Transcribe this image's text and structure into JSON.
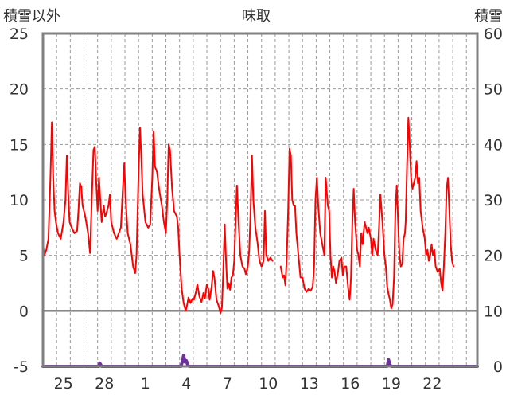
{
  "chart_data": {
    "type": "line",
    "title": "味取",
    "ylabel_left": "積雪以外",
    "ylabel_right": "積雪",
    "y_left_range": [
      -5,
      25
    ],
    "y_left_ticks": [
      -5,
      0,
      5,
      10,
      15,
      20,
      25
    ],
    "y_right_range": [
      0,
      60
    ],
    "y_right_ticks": [
      0,
      10,
      20,
      30,
      40,
      50,
      60
    ],
    "x_range": [
      0,
      31.8
    ],
    "x_ticks": [
      {
        "x": 1.5,
        "label": "25"
      },
      {
        "x": 4.5,
        "label": "28"
      },
      {
        "x": 7.5,
        "label": "1"
      },
      {
        "x": 10.5,
        "label": "4"
      },
      {
        "x": 13.5,
        "label": "7"
      },
      {
        "x": 16.5,
        "label": "10"
      },
      {
        "x": 19.5,
        "label": "13"
      },
      {
        "x": 22.5,
        "label": "16"
      },
      {
        "x": 25.5,
        "label": "19"
      },
      {
        "x": 28.5,
        "label": "22"
      }
    ],
    "x_gridlines": [
      1,
      2,
      3,
      4,
      5,
      6,
      7,
      8,
      9,
      10,
      11,
      12,
      13,
      14,
      15,
      16,
      17,
      18,
      19,
      20,
      21,
      22,
      23,
      24,
      25,
      26,
      27,
      28,
      29,
      30,
      31
    ],
    "grid": true,
    "series": [
      {
        "name": "",
        "axis": "left",
        "color": "#ff0000",
        "segments": [
          [
            [
              0.0,
              6.0
            ],
            [
              0.1,
              5.0
            ],
            [
              0.25,
              5.5
            ],
            [
              0.4,
              6.5
            ],
            [
              0.55,
              12.0
            ],
            [
              0.65,
              17.0
            ],
            [
              0.75,
              12.0
            ],
            [
              0.85,
              9.0
            ],
            [
              0.95,
              8.0
            ],
            [
              1.1,
              7.0
            ],
            [
              1.3,
              6.5
            ],
            [
              1.5,
              8.0
            ],
            [
              1.65,
              10.0
            ],
            [
              1.75,
              14.0
            ],
            [
              1.85,
              10.5
            ],
            [
              1.95,
              8.0
            ],
            [
              2.1,
              7.5
            ],
            [
              2.3,
              7.0
            ],
            [
              2.5,
              7.2
            ],
            [
              2.6,
              9.0
            ],
            [
              2.7,
              11.5
            ],
            [
              2.8,
              11.2
            ],
            [
              2.9,
              9.5
            ],
            [
              3.1,
              8.5
            ],
            [
              3.3,
              7.0
            ],
            [
              3.45,
              5.2
            ],
            [
              3.6,
              11.0
            ],
            [
              3.7,
              14.5
            ],
            [
              3.8,
              14.8
            ],
            [
              3.9,
              11.5
            ],
            [
              4.0,
              9.0
            ],
            [
              4.1,
              12.0
            ],
            [
              4.2,
              10.0
            ],
            [
              4.3,
              8.0
            ],
            [
              4.45,
              9.5
            ],
            [
              4.55,
              8.5
            ],
            [
              4.65,
              8.8
            ],
            [
              4.8,
              9.5
            ],
            [
              4.9,
              10.5
            ],
            [
              5.0,
              8.0
            ],
            [
              5.2,
              7.0
            ],
            [
              5.4,
              6.5
            ],
            [
              5.55,
              7.0
            ],
            [
              5.7,
              7.5
            ],
            [
              5.85,
              11.0
            ],
            [
              5.95,
              13.3
            ],
            [
              6.05,
              10.0
            ],
            [
              6.2,
              7.0
            ],
            [
              6.4,
              6.0
            ],
            [
              6.6,
              4.0
            ],
            [
              6.75,
              3.4
            ],
            [
              6.85,
              5.0
            ],
            [
              7.0,
              12.5
            ],
            [
              7.1,
              16.5
            ],
            [
              7.2,
              14.0
            ],
            [
              7.3,
              10.5
            ],
            [
              7.5,
              8.0
            ],
            [
              7.7,
              7.5
            ],
            [
              7.85,
              7.8
            ],
            [
              8.0,
              12.0
            ],
            [
              8.1,
              16.2
            ],
            [
              8.2,
              13.0
            ],
            [
              8.35,
              12.5
            ],
            [
              8.5,
              11.0
            ],
            [
              8.7,
              9.5
            ],
            [
              8.85,
              8.0
            ],
            [
              9.0,
              7.0
            ],
            [
              9.1,
              10.0
            ],
            [
              9.2,
              15.0
            ],
            [
              9.3,
              14.5
            ],
            [
              9.45,
              11.0
            ],
            [
              9.6,
              9.0
            ],
            [
              9.8,
              8.5
            ],
            [
              9.9,
              7.5
            ],
            [
              10.0,
              5.0
            ],
            [
              10.15,
              2.0
            ],
            [
              10.3,
              0.7
            ],
            [
              10.45,
              0.0
            ],
            [
              10.55,
              0.5
            ],
            [
              10.65,
              1.2
            ],
            [
              10.8,
              0.7
            ],
            [
              10.95,
              1.1
            ],
            [
              11.05,
              1.0
            ],
            [
              11.2,
              1.7
            ],
            [
              11.3,
              2.4
            ],
            [
              11.45,
              1.3
            ],
            [
              11.6,
              0.8
            ],
            [
              11.75,
              1.6
            ],
            [
              11.85,
              1.1
            ],
            [
              12.0,
              2.4
            ],
            [
              12.1,
              2.0
            ],
            [
              12.2,
              1.0
            ],
            [
              12.35,
              2.2
            ],
            [
              12.45,
              3.6
            ],
            [
              12.55,
              3.0
            ],
            [
              12.7,
              1.0
            ],
            [
              12.85,
              0.5
            ],
            [
              13.0,
              -0.2
            ],
            [
              13.1,
              0.3
            ],
            [
              13.2,
              3.5
            ],
            [
              13.3,
              7.8
            ],
            [
              13.4,
              4.5
            ],
            [
              13.5,
              2.0
            ],
            [
              13.6,
              2.5
            ],
            [
              13.7,
              1.9
            ],
            [
              13.8,
              3.0
            ],
            [
              13.9,
              3.2
            ],
            [
              14.0,
              4.5
            ],
            [
              14.1,
              8.0
            ],
            [
              14.2,
              11.3
            ],
            [
              14.3,
              8.5
            ],
            [
              14.45,
              5.0
            ],
            [
              14.6,
              4.0
            ],
            [
              14.75,
              3.8
            ],
            [
              14.85,
              3.3
            ],
            [
              15.0,
              4.0
            ],
            [
              15.1,
              5.5
            ],
            [
              15.2,
              9.0
            ],
            [
              15.3,
              14.0
            ],
            [
              15.4,
              10.0
            ],
            [
              15.55,
              7.5
            ],
            [
              15.7,
              6.2
            ],
            [
              15.85,
              4.5
            ],
            [
              16.0,
              4.0
            ],
            [
              16.15,
              4.5
            ],
            [
              16.25,
              9.0
            ],
            [
              16.35,
              5.0
            ],
            [
              16.5,
              4.5
            ],
            [
              16.65,
              4.8
            ],
            [
              16.8,
              4.5
            ]
          ],
          [
            [
              17.4,
              4.0
            ],
            [
              17.55,
              3.0
            ],
            [
              17.65,
              3.2
            ],
            [
              17.75,
              2.3
            ],
            [
              17.85,
              5.0
            ],
            [
              17.95,
              9.0
            ],
            [
              18.05,
              14.6
            ],
            [
              18.15,
              14.0
            ],
            [
              18.25,
              10.0
            ],
            [
              18.35,
              9.5
            ],
            [
              18.45,
              9.5
            ],
            [
              18.55,
              7.0
            ],
            [
              18.7,
              5.0
            ],
            [
              18.85,
              3.0
            ],
            [
              19.0,
              3.0
            ],
            [
              19.15,
              2.0
            ],
            [
              19.3,
              1.7
            ],
            [
              19.45,
              2.0
            ],
            [
              19.6,
              1.8
            ],
            [
              19.75,
              2.2
            ],
            [
              19.85,
              4.0
            ],
            [
              19.95,
              10.0
            ],
            [
              20.05,
              12.0
            ],
            [
              20.15,
              9.5
            ],
            [
              20.3,
              7.0
            ],
            [
              20.45,
              6.0
            ],
            [
              20.6,
              5.0
            ],
            [
              20.7,
              12.0
            ],
            [
              20.85,
              9.5
            ],
            [
              20.95,
              9.0
            ],
            [
              21.05,
              5.0
            ],
            [
              21.15,
              3.0
            ],
            [
              21.25,
              4.0
            ],
            [
              21.35,
              3.5
            ],
            [
              21.45,
              2.5
            ],
            [
              21.6,
              3.5
            ],
            [
              21.7,
              4.5
            ],
            [
              21.85,
              4.8
            ],
            [
              21.95,
              3.2
            ],
            [
              22.05,
              4.0
            ],
            [
              22.2,
              4.0
            ],
            [
              22.35,
              2.0
            ],
            [
              22.45,
              1.0
            ],
            [
              22.55,
              3.0
            ],
            [
              22.65,
              8.0
            ],
            [
              22.75,
              11.0
            ],
            [
              22.85,
              8.0
            ],
            [
              23.0,
              5.5
            ],
            [
              23.1,
              5.0
            ],
            [
              23.2,
              4.0
            ],
            [
              23.3,
              7.0
            ],
            [
              23.4,
              6.0
            ],
            [
              23.55,
              8.0
            ],
            [
              23.65,
              7.5
            ],
            [
              23.75,
              7.0
            ],
            [
              23.85,
              7.5
            ],
            [
              24.0,
              6.5
            ],
            [
              24.1,
              5.0
            ],
            [
              24.2,
              6.5
            ],
            [
              24.35,
              5.5
            ],
            [
              24.5,
              5.0
            ],
            [
              24.6,
              7.5
            ],
            [
              24.7,
              10.5
            ],
            [
              24.85,
              8.0
            ],
            [
              25.0,
              5.0
            ],
            [
              25.1,
              4.0
            ],
            [
              25.2,
              2.2
            ],
            [
              25.3,
              1.5
            ],
            [
              25.4,
              1.0
            ],
            [
              25.5,
              0.2
            ],
            [
              25.6,
              0.6
            ],
            [
              25.7,
              3.0
            ],
            [
              25.8,
              9.0
            ],
            [
              25.9,
              11.3
            ],
            [
              26.0,
              8.0
            ],
            [
              26.1,
              5.0
            ],
            [
              26.2,
              4.0
            ],
            [
              26.3,
              4.2
            ],
            [
              26.4,
              6.5
            ],
            [
              26.5,
              7.0
            ],
            [
              26.55,
              8.0
            ],
            [
              26.65,
              13.0
            ],
            [
              26.75,
              17.4
            ],
            [
              26.85,
              15.0
            ],
            [
              26.95,
              12.0
            ],
            [
              27.05,
              11.0
            ],
            [
              27.15,
              11.5
            ],
            [
              27.25,
              12.0
            ],
            [
              27.35,
              13.5
            ],
            [
              27.45,
              11.5
            ],
            [
              27.55,
              12.0
            ],
            [
              27.65,
              9.0
            ],
            [
              27.8,
              7.5
            ],
            [
              27.95,
              6.5
            ],
            [
              28.05,
              5.0
            ],
            [
              28.15,
              5.5
            ],
            [
              28.25,
              4.5
            ],
            [
              28.35,
              5.0
            ],
            [
              28.45,
              6.0
            ],
            [
              28.55,
              5.0
            ],
            [
              28.65,
              5.5
            ],
            [
              28.75,
              4.0
            ],
            [
              28.9,
              3.5
            ],
            [
              29.05,
              3.8
            ],
            [
              29.15,
              2.5
            ],
            [
              29.25,
              1.8
            ],
            [
              29.35,
              4.0
            ],
            [
              29.45,
              7.0
            ],
            [
              29.55,
              11.0
            ],
            [
              29.65,
              12.0
            ],
            [
              29.75,
              9.0
            ],
            [
              29.85,
              6.0
            ],
            [
              29.95,
              4.5
            ],
            [
              30.05,
              4.0
            ]
          ]
        ]
      },
      {
        "name": "",
        "axis": "right",
        "color": "#7030a0",
        "segments": [
          [
            [
              0.0,
              0.0
            ],
            [
              4.1,
              0.0
            ],
            [
              4.15,
              0.6
            ],
            [
              4.25,
              0.2
            ],
            [
              4.3,
              0.0
            ],
            [
              10.1,
              0.0
            ],
            [
              10.2,
              0.8
            ],
            [
              10.3,
              2.0
            ],
            [
              10.4,
              0.8
            ],
            [
              10.5,
              1.0
            ],
            [
              10.6,
              0.2
            ],
            [
              10.7,
              0.0
            ],
            [
              25.2,
              0.0
            ],
            [
              25.3,
              1.2
            ],
            [
              25.4,
              0.3
            ],
            [
              25.5,
              0.0
            ],
            [
              31.8,
              0.0
            ]
          ]
        ]
      }
    ]
  }
}
